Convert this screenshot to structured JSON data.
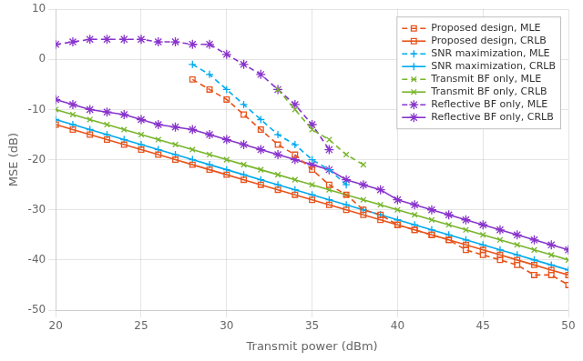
{
  "chart_data": {
    "type": "line",
    "xlabel": "Transmit power (dBm)",
    "ylabel": "MSE (dB)",
    "x": [
      20,
      21,
      22,
      23,
      24,
      25,
      26,
      27,
      28,
      29,
      30,
      31,
      32,
      33,
      34,
      35,
      36,
      37,
      38,
      39,
      40,
      41,
      42,
      43,
      44,
      45,
      46,
      47,
      48,
      49,
      50
    ],
    "series": [
      {
        "name": "Proposed design, MLE",
        "color": "#e8531a",
        "marker": "square",
        "line_style": "dashed",
        "values": [
          null,
          null,
          null,
          null,
          null,
          null,
          null,
          null,
          -4,
          -6,
          -8,
          -11,
          -14,
          -17,
          -19,
          -22,
          -25,
          -27,
          -30,
          -31,
          -33,
          -34,
          -35,
          -36,
          -38,
          -39,
          -40,
          -41,
          -43,
          -43,
          -45
        ]
      },
      {
        "name": "Proposed design, CRLB",
        "color": "#e8531a",
        "marker": "square",
        "line_style": "solid",
        "values": [
          -13,
          -14,
          -15,
          -16,
          -17,
          -18,
          -19,
          -20,
          -21,
          -22,
          -23,
          -24,
          -25,
          -26,
          -27,
          -28,
          -29,
          -30,
          -31,
          -32,
          -33,
          -34,
          -35,
          -36,
          -37,
          -38,
          -39,
          -40,
          -41,
          -42,
          -43
        ]
      },
      {
        "name": "SNR maximization, MLE",
        "color": "#00aaee",
        "marker": "plus",
        "line_style": "dashed",
        "values": [
          null,
          null,
          null,
          null,
          null,
          null,
          null,
          null,
          -1,
          -3,
          -6,
          -9,
          -12,
          -15,
          -17,
          -20,
          -22,
          -25,
          null,
          null,
          null,
          null,
          null,
          null,
          null,
          null,
          null,
          null,
          null,
          null,
          null
        ]
      },
      {
        "name": "SNR maximization, CRLB",
        "color": "#00aaee",
        "marker": "plus",
        "line_style": "solid",
        "values": [
          -12,
          -13,
          -14,
          -15,
          -16,
          -17,
          -18,
          -19,
          -20,
          -21,
          -22,
          -23,
          -24,
          -25,
          -26,
          -27,
          -28,
          -29,
          -30,
          -31,
          -32,
          -33,
          -34,
          -35,
          -36,
          -37,
          -38,
          -39,
          -40,
          -41,
          -42
        ]
      },
      {
        "name": "Transmit BF only, MLE",
        "color": "#77b52a",
        "marker": "x",
        "line_style": "dashed",
        "values": [
          null,
          null,
          null,
          null,
          null,
          null,
          null,
          null,
          null,
          null,
          null,
          null,
          null,
          -6,
          -10,
          -14,
          -16,
          -19,
          -21,
          null,
          null,
          null,
          null,
          null,
          null,
          null,
          null,
          null,
          null,
          null,
          null
        ]
      },
      {
        "name": "Transmit BF only, CRLB",
        "color": "#77b52a",
        "marker": "x",
        "line_style": "solid",
        "values": [
          -10,
          -11,
          -12,
          -13,
          -14,
          -15,
          -16,
          -17,
          -18,
          -19,
          -20,
          -21,
          -22,
          -23,
          -24,
          -25,
          -26,
          -27,
          -28,
          -29,
          -30,
          -31,
          -32,
          -33,
          -34,
          -35,
          -36,
          -37,
          -38,
          -39,
          -40
        ]
      },
      {
        "name": "Reflective BF only, MLE",
        "color": "#8833cc",
        "marker": "star",
        "line_style": "dashed",
        "values": [
          3,
          3.5,
          4,
          4,
          4,
          4,
          3.5,
          3.5,
          3,
          3,
          1,
          -1,
          -3,
          -6,
          -9,
          -13,
          -18,
          null,
          null,
          null,
          null,
          null,
          null,
          null,
          null,
          null,
          null,
          null,
          null,
          null,
          null
        ]
      },
      {
        "name": "Reflective BF only, CRLB",
        "color": "#8833cc",
        "marker": "star",
        "line_style": "solid",
        "values": [
          -8,
          -9,
          -10,
          -10.5,
          -11,
          -12,
          -13,
          -13.5,
          -14,
          -15,
          -16,
          -17,
          -18,
          -19,
          -20,
          -21,
          -22,
          -24,
          -25,
          -26,
          -28,
          -29,
          -30,
          -31,
          -32,
          -33,
          -34,
          -35,
          -36,
          -37,
          -38
        ]
      }
    ],
    "xlim": [
      20,
      50
    ],
    "ylim": [
      -50,
      10
    ],
    "xticks": [
      20,
      25,
      30,
      35,
      40,
      45,
      50
    ],
    "yticks": [
      -50,
      -40,
      -30,
      -20,
      -10,
      0,
      10
    ],
    "grid": true,
    "legend": "upper right"
  }
}
